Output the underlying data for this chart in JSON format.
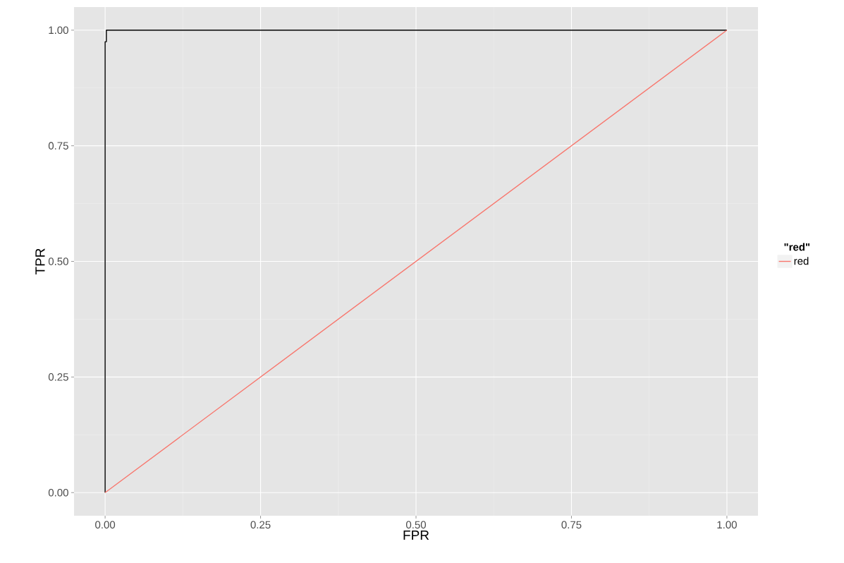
{
  "chart_data": {
    "type": "line",
    "xlabel": "FPR",
    "ylabel": "TPR",
    "legend_title": "\"red\"",
    "legend": "right",
    "grid": true,
    "marker": "none",
    "line_style": "solid",
    "xlim": [
      -0.05,
      1.05
    ],
    "ylim": [
      -0.05,
      1.05
    ],
    "xticks": [
      {
        "value": 0,
        "label": "0.00"
      },
      {
        "value": 0.25,
        "label": "0.25"
      },
      {
        "value": 0.5,
        "label": "0.50"
      },
      {
        "value": 0.75,
        "label": "0.75"
      },
      {
        "value": 1,
        "label": "1.00"
      }
    ],
    "yticks": [
      {
        "value": 0,
        "label": "0.00"
      },
      {
        "value": 0.25,
        "label": "0.25"
      },
      {
        "value": 0.5,
        "label": "0.50"
      },
      {
        "value": 0.75,
        "label": "0.75"
      },
      {
        "value": 1,
        "label": "1.00"
      }
    ],
    "series": [
      {
        "color": "#000000",
        "x": [
          0,
          0,
          0.002,
          0.002,
          1
        ],
        "values": [
          0,
          0.975,
          0.975,
          1,
          1
        ]
      },
      {
        "name": "red",
        "color": "#f8766d",
        "x": [
          0,
          1
        ],
        "values": [
          0,
          1
        ]
      }
    ]
  }
}
